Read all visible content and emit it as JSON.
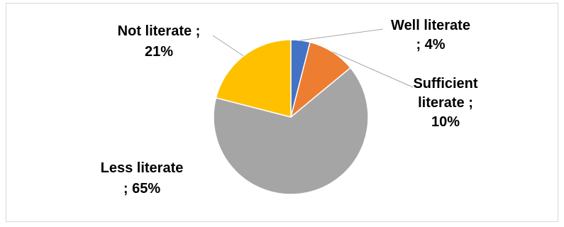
{
  "chart_data": {
    "type": "pie",
    "title": "",
    "slices": [
      {
        "name": "Well literate",
        "value": 4,
        "label_lines": [
          "Well literate",
          "; 4%"
        ],
        "color": "#4472c4"
      },
      {
        "name": "Sufficient literate",
        "value": 10,
        "label_lines": [
          "Sufficient",
          "literate ;",
          "10%"
        ],
        "color": "#ed7d31"
      },
      {
        "name": "Less literate",
        "value": 65,
        "label_lines": [
          "Less literate",
          "; 65%"
        ],
        "color": "#a5a5a5"
      },
      {
        "name": "Not literate",
        "value": 21,
        "label_lines": [
          "Not literate ;",
          "21%"
        ],
        "color": "#ffc000"
      }
    ],
    "start_angle": "12 o'clock",
    "direction": "clockwise",
    "legend": "none",
    "data_labels": "outside with leader lines"
  }
}
